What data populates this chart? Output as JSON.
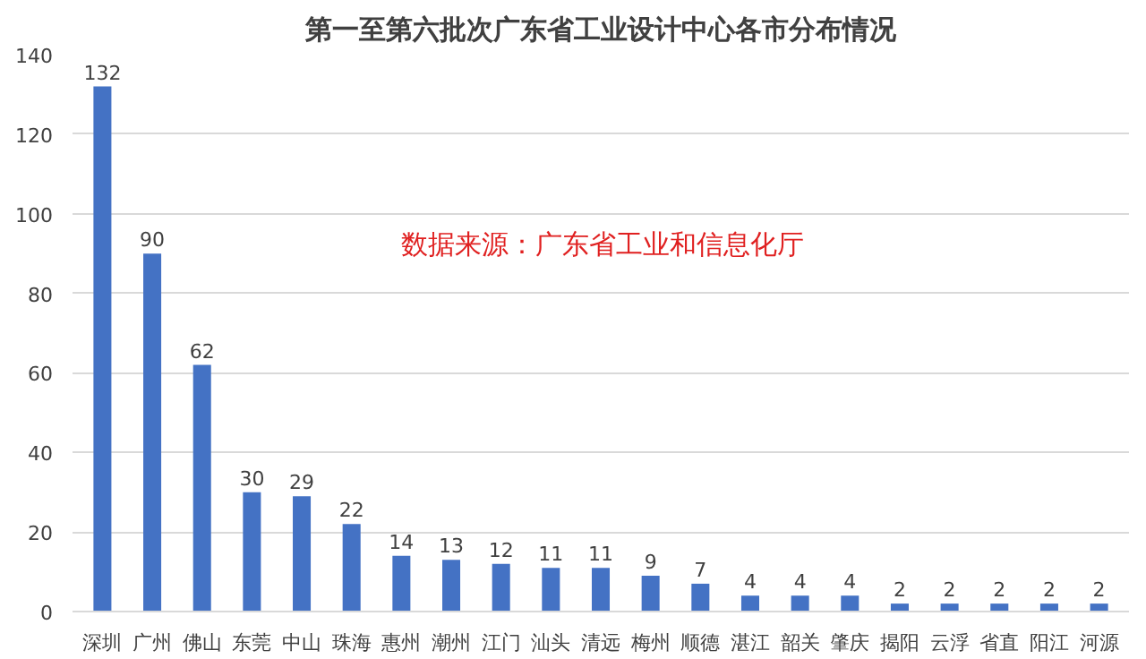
{
  "chart_data": {
    "type": "bar",
    "title": "第一至第六批次广东省工业设计中心各市分布情况",
    "categories": [
      "深圳",
      "广州",
      "佛山",
      "东莞",
      "中山",
      "珠海",
      "惠州",
      "潮州",
      "江门",
      "汕头",
      "清远",
      "梅州",
      "顺德",
      "湛江",
      "韶关",
      "肇庆",
      "揭阳",
      "云浮",
      "省直",
      "阳江",
      "河源"
    ],
    "values": [
      132,
      90,
      62,
      30,
      29,
      22,
      14,
      13,
      12,
      11,
      11,
      9,
      7,
      4,
      4,
      4,
      2,
      2,
      2,
      2,
      2
    ],
    "color": "#4472c4",
    "ylim": [
      0,
      140
    ],
    "yticks": [
      0,
      20,
      40,
      60,
      80,
      100,
      120,
      140
    ],
    "grid": "y",
    "data_labels": true,
    "annotations": [
      "数据来源：广东省工业和信息化厅"
    ]
  }
}
